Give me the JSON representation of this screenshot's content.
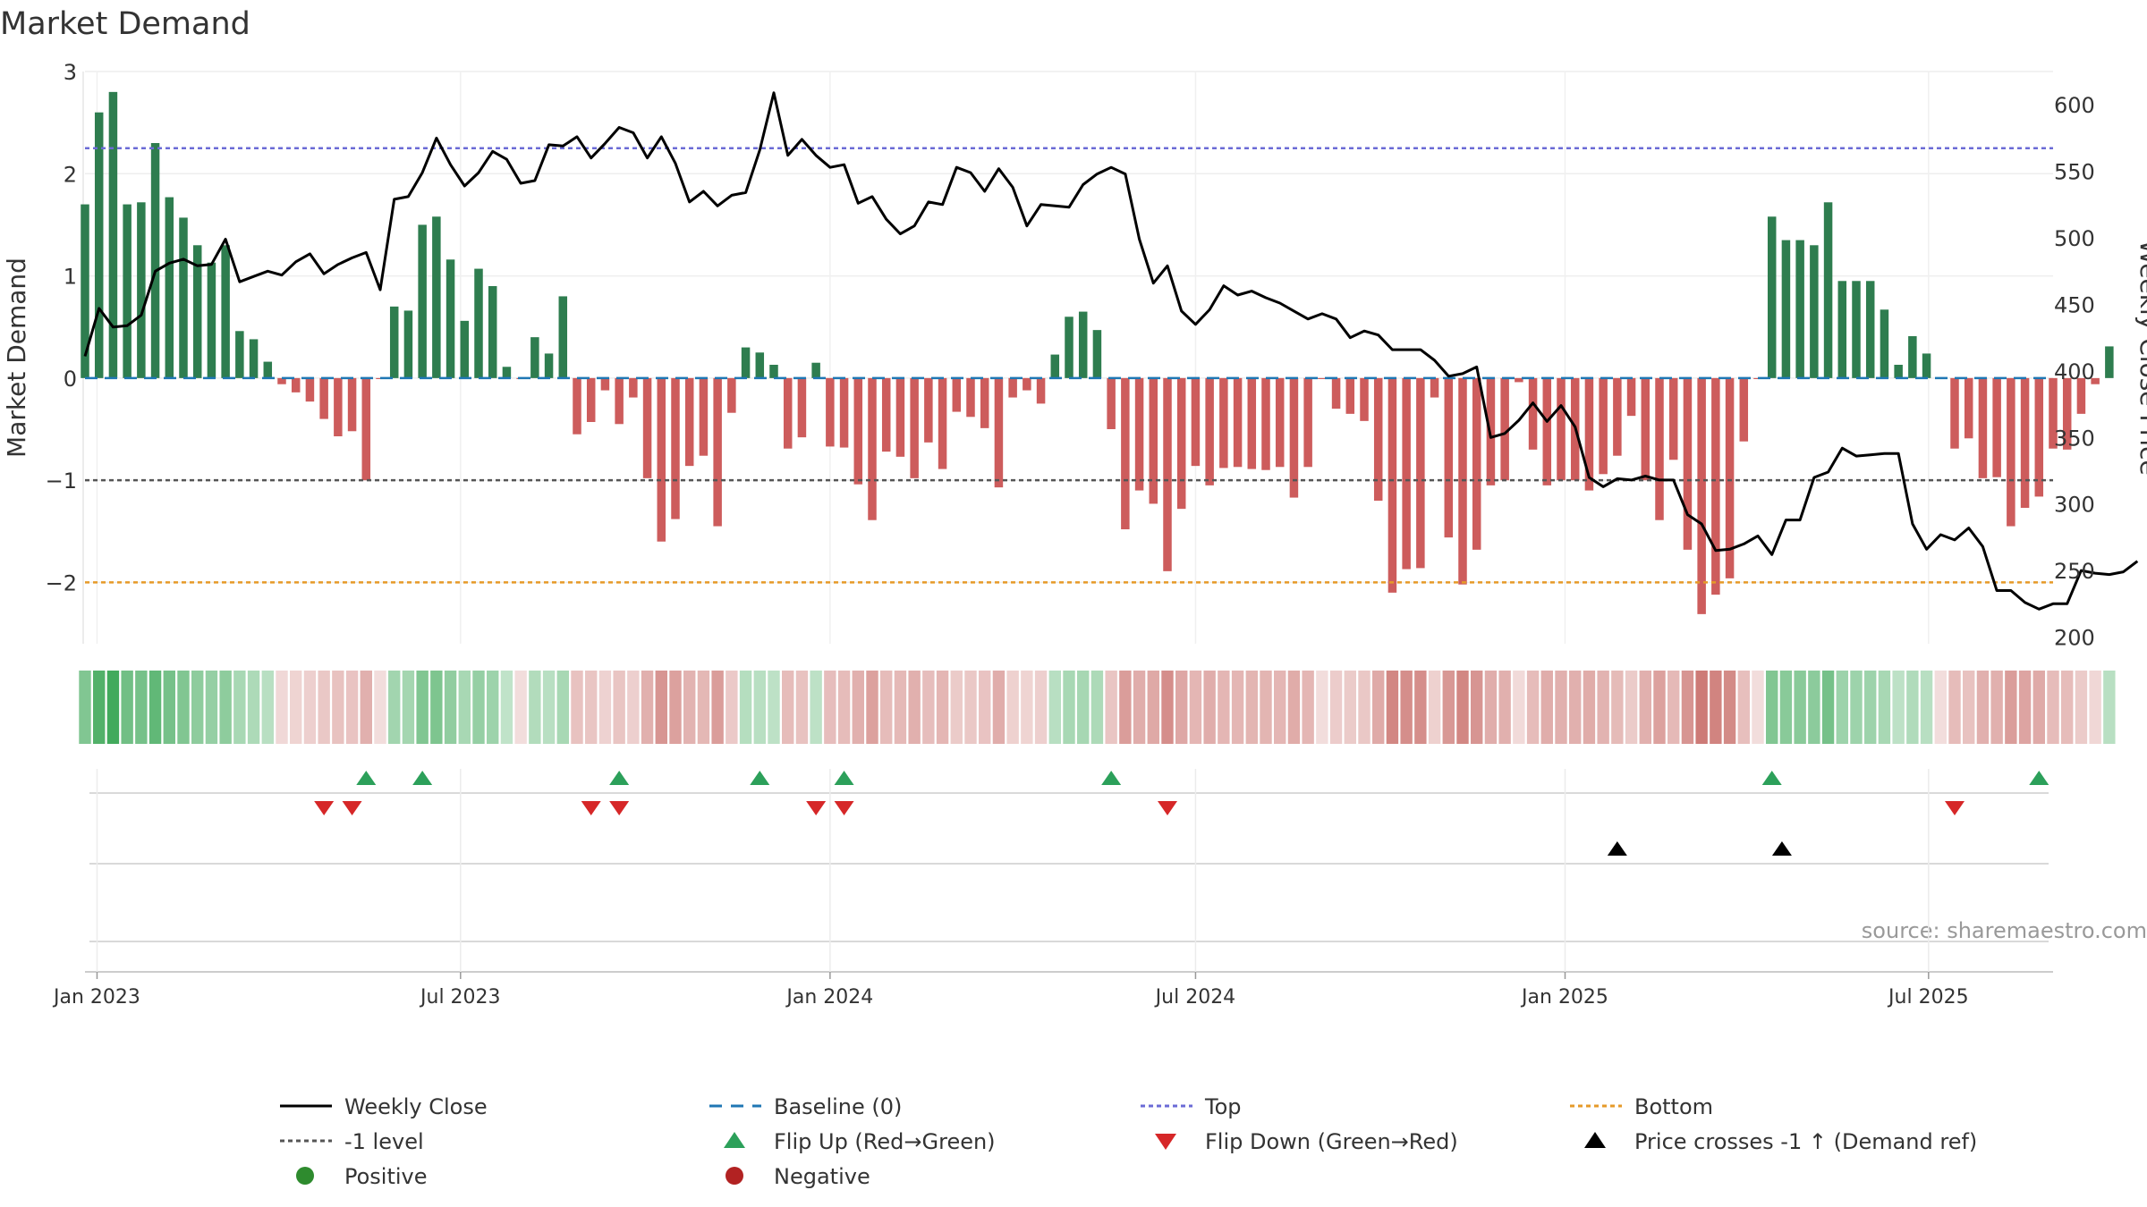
{
  "chart_data": {
    "type": "bar",
    "title": "Market Demand",
    "ylabel_left": "Market Demand",
    "ylabel_right": "Weekly Close Price",
    "source": "source: sharemaestro.com",
    "x_start": "2022-12-26",
    "x_end": "2025-09-01",
    "x_ticks": [
      {
        "date": "2023-01-01",
        "label": "Jan 2023"
      },
      {
        "date": "2023-07-01",
        "label": "Jul 2023"
      },
      {
        "date": "2024-01-01",
        "label": "Jan 2024"
      },
      {
        "date": "2024-07-01",
        "label": "Jul 2024"
      },
      {
        "date": "2025-01-01",
        "label": "Jan 2025"
      },
      {
        "date": "2025-07-01",
        "label": "Jul 2025"
      }
    ],
    "y_left": {
      "min": -2.6,
      "max": 3.0,
      "ticks": [
        3,
        2,
        1,
        0,
        -1,
        -2
      ],
      "tick_labels": [
        "3",
        "2",
        "1",
        "0",
        "−1",
        "−2"
      ]
    },
    "y_right": {
      "min": 195,
      "max": 625,
      "ticks": [
        600,
        550,
        500,
        450,
        400,
        350,
        300,
        250,
        200
      ]
    },
    "reference_lines": {
      "baseline": 0,
      "top": 2.25,
      "minus_one": -1,
      "bottom": -2
    },
    "colors": {
      "positive_bar": "#2e7d4f",
      "negative_bar": "#cd5c5c",
      "close_line": "#000000",
      "baseline": "#1f77b4",
      "top": "#6b6bd6",
      "minus_one": "#555555",
      "bottom": "#e69a28",
      "flip_up": "#2ca05a",
      "flip_down": "#d62728",
      "cross": "#000000",
      "positive_dot": "#2e8b2e",
      "negative_dot": "#b22222"
    },
    "demand": [
      1.7,
      2.6,
      2.8,
      1.7,
      1.72,
      2.3,
      1.77,
      1.57,
      1.3,
      1.13,
      1.3,
      0.46,
      0.38,
      0.16,
      -0.06,
      -0.14,
      -0.23,
      -0.4,
      -0.57,
      -0.52,
      -1.0,
      -0.01,
      0.7,
      0.66,
      1.5,
      1.58,
      1.16,
      0.56,
      1.07,
      0.9,
      0.11,
      -0.01,
      0.4,
      0.24,
      0.8,
      -0.55,
      -0.43,
      -0.12,
      -0.45,
      -0.19,
      -0.98,
      -1.6,
      -1.38,
      -0.86,
      -0.76,
      -1.45,
      -0.34,
      0.3,
      0.25,
      0.13,
      -0.69,
      -0.58,
      0.15,
      -0.67,
      -0.68,
      -1.04,
      -1.39,
      -0.72,
      -0.77,
      -0.98,
      -0.63,
      -0.89,
      -0.33,
      -0.38,
      -0.49,
      -1.07,
      -0.19,
      -0.12,
      -0.25,
      0.23,
      0.6,
      0.65,
      0.47,
      -0.5,
      -1.48,
      -1.1,
      -1.23,
      -1.89,
      -1.28,
      -0.86,
      -1.05,
      -0.88,
      -0.87,
      -0.89,
      -0.9,
      -0.87,
      -1.17,
      -0.87,
      -0.01,
      -0.3,
      -0.35,
      -0.42,
      -1.2,
      -2.1,
      -1.87,
      -1.86,
      -0.19,
      -1.56,
      -2.02,
      -1.68,
      -1.05,
      -1.0,
      -0.04,
      -0.7,
      -1.05,
      -1.0,
      -1.0,
      -1.1,
      -0.94,
      -0.76,
      -0.37,
      -1.0,
      -1.39,
      -0.8,
      -1.68,
      -2.31,
      -2.12,
      -1.96,
      -0.62,
      -0.01,
      1.58,
      1.35,
      1.35,
      1.3,
      1.72,
      0.95,
      0.95,
      0.95,
      0.67,
      0.13,
      0.41,
      0.24,
      -0.01,
      -0.69,
      -0.59,
      -0.98,
      -0.97,
      -1.45,
      -1.27,
      -1.16,
      -0.69,
      -0.7,
      -0.35,
      -0.06,
      0.31
    ],
    "close": [
      411,
      447,
      433,
      434,
      442,
      475,
      481,
      484,
      479,
      480,
      499,
      467,
      471,
      475,
      472,
      482,
      488,
      473,
      480,
      485,
      489,
      461,
      529,
      531,
      549,
      575,
      555,
      539,
      549,
      565,
      559,
      541,
      543,
      570,
      569,
      576,
      560,
      571,
      583,
      579,
      560,
      576,
      556,
      527,
      535,
      524,
      532,
      534,
      566,
      609,
      562,
      574,
      562,
      553,
      555,
      526,
      531,
      514,
      503,
      509,
      527,
      525,
      553,
      549,
      535,
      552,
      538,
      509,
      525,
      524,
      523,
      540,
      548,
      553,
      548,
      499,
      466,
      479,
      445,
      435,
      446,
      464,
      457,
      460,
      455,
      451,
      445,
      439,
      443,
      439,
      425,
      430,
      427,
      416,
      416,
      416,
      408,
      396,
      398,
      403,
      350,
      353,
      363,
      376,
      362,
      374,
      358,
      320,
      313,
      319,
      318,
      321,
      318,
      318,
      292,
      285,
      265,
      266,
      270,
      276,
      262,
      288,
      288,
      320,
      324,
      342,
      336,
      337,
      338,
      338,
      285,
      266,
      277,
      273,
      282,
      268,
      235,
      235,
      226,
      221,
      225,
      225,
      250,
      248,
      247,
      249,
      257
    ],
    "heat_intensity": [
      0.55,
      0.85,
      0.95,
      0.65,
      0.62,
      0.75,
      0.62,
      0.55,
      0.47,
      0.42,
      0.47,
      0.3,
      0.27,
      0.2,
      0.15,
      0.18,
      0.21,
      0.26,
      0.3,
      0.29,
      0.42,
      0.12,
      0.34,
      0.33,
      0.55,
      0.57,
      0.45,
      0.3,
      0.42,
      0.37,
      0.15,
      0.12,
      0.24,
      0.2,
      0.3,
      0.3,
      0.28,
      0.19,
      0.28,
      0.21,
      0.42,
      0.6,
      0.52,
      0.4,
      0.37,
      0.55,
      0.25,
      0.22,
      0.2,
      0.17,
      0.34,
      0.3,
      0.17,
      0.33,
      0.34,
      0.42,
      0.52,
      0.34,
      0.36,
      0.42,
      0.33,
      0.38,
      0.24,
      0.26,
      0.29,
      0.44,
      0.2,
      0.18,
      0.21,
      0.2,
      0.3,
      0.31,
      0.27,
      0.28,
      0.55,
      0.44,
      0.47,
      0.65,
      0.48,
      0.38,
      0.44,
      0.38,
      0.38,
      0.39,
      0.39,
      0.38,
      0.45,
      0.38,
      0.12,
      0.23,
      0.24,
      0.26,
      0.46,
      0.7,
      0.65,
      0.65,
      0.2,
      0.58,
      0.7,
      0.6,
      0.44,
      0.42,
      0.14,
      0.34,
      0.44,
      0.42,
      0.42,
      0.45,
      0.4,
      0.35,
      0.24,
      0.42,
      0.52,
      0.36,
      0.6,
      0.78,
      0.72,
      0.67,
      0.32,
      0.12,
      0.55,
      0.5,
      0.5,
      0.48,
      0.62,
      0.37,
      0.37,
      0.37,
      0.3,
      0.17,
      0.25,
      0.2,
      0.12,
      0.34,
      0.3,
      0.42,
      0.42,
      0.55,
      0.5,
      0.46,
      0.34,
      0.34,
      0.24,
      0.16,
      0.2
    ],
    "flip_up": [
      "2023-05-15",
      "2023-06-12",
      "2023-09-18",
      "2023-11-27",
      "2024-01-08",
      "2024-05-20",
      "2025-04-14",
      "2025-08-25"
    ],
    "flip_down": [
      "2023-04-24",
      "2023-05-08",
      "2023-09-04",
      "2023-09-18",
      "2023-12-25",
      "2024-01-08",
      "2024-06-17",
      "2025-07-14"
    ],
    "price_crosses": [
      "2025-01-27",
      "2025-04-19"
    ],
    "legend": [
      {
        "label": "Weekly Close",
        "symbol": "line-solid",
        "color": "#000000"
      },
      {
        "label": "Baseline (0)",
        "symbol": "line-dashed",
        "color": "#1f77b4"
      },
      {
        "label": "Top",
        "symbol": "line-dotted",
        "color": "#6b6bd6"
      },
      {
        "label": "Bottom",
        "symbol": "line-dotted",
        "color": "#e69a28"
      },
      {
        "label": "-1 level",
        "symbol": "line-dotted",
        "color": "#555555"
      },
      {
        "label": "Flip Up (Red→Green)",
        "symbol": "triangle-up",
        "color": "#2ca05a"
      },
      {
        "label": "Flip Down (Green→Red)",
        "symbol": "triangle-down",
        "color": "#d62728"
      },
      {
        "label": "Price crosses -1 ↑ (Demand ref)",
        "symbol": "triangle-up",
        "color": "#000000"
      },
      {
        "label": "Positive",
        "symbol": "dot",
        "color": "#2e8b2e"
      },
      {
        "label": "Negative",
        "symbol": "dot",
        "color": "#b22222"
      }
    ]
  }
}
